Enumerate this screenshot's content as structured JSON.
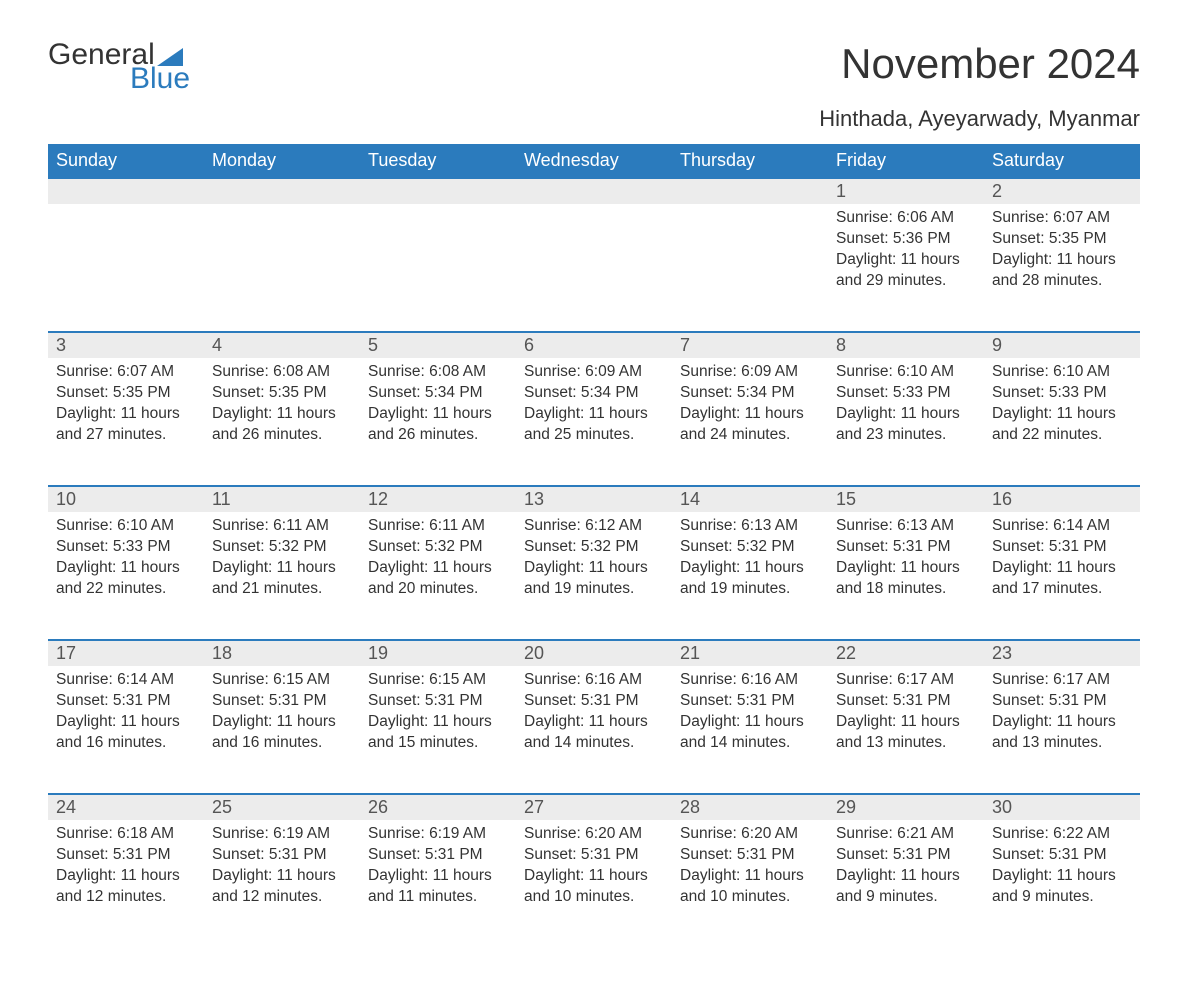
{
  "brand": {
    "word1": "General",
    "word2": "Blue",
    "accent_color": "#2b7bbd"
  },
  "title": "November 2024",
  "location": "Hinthada, Ayeyarwady, Myanmar",
  "colors": {
    "header_bg": "#2b7bbd",
    "header_text": "#ffffff",
    "row_divider": "#2b7bbd",
    "daynum_bg": "#ececec",
    "body_text": "#333333",
    "page_bg": "#ffffff"
  },
  "typography": {
    "title_fontsize": 42,
    "location_fontsize": 22,
    "header_fontsize": 18,
    "daynum_fontsize": 18,
    "cell_fontsize": 15.5
  },
  "day_headers": [
    "Sunday",
    "Monday",
    "Tuesday",
    "Wednesday",
    "Thursday",
    "Friday",
    "Saturday"
  ],
  "weeks": [
    [
      null,
      null,
      null,
      null,
      null,
      {
        "day": 1,
        "sunrise": "6:06 AM",
        "sunset": "5:36 PM",
        "daylight": "11 hours and 29 minutes."
      },
      {
        "day": 2,
        "sunrise": "6:07 AM",
        "sunset": "5:35 PM",
        "daylight": "11 hours and 28 minutes."
      }
    ],
    [
      {
        "day": 3,
        "sunrise": "6:07 AM",
        "sunset": "5:35 PM",
        "daylight": "11 hours and 27 minutes."
      },
      {
        "day": 4,
        "sunrise": "6:08 AM",
        "sunset": "5:35 PM",
        "daylight": "11 hours and 26 minutes."
      },
      {
        "day": 5,
        "sunrise": "6:08 AM",
        "sunset": "5:34 PM",
        "daylight": "11 hours and 26 minutes."
      },
      {
        "day": 6,
        "sunrise": "6:09 AM",
        "sunset": "5:34 PM",
        "daylight": "11 hours and 25 minutes."
      },
      {
        "day": 7,
        "sunrise": "6:09 AM",
        "sunset": "5:34 PM",
        "daylight": "11 hours and 24 minutes."
      },
      {
        "day": 8,
        "sunrise": "6:10 AM",
        "sunset": "5:33 PM",
        "daylight": "11 hours and 23 minutes."
      },
      {
        "day": 9,
        "sunrise": "6:10 AM",
        "sunset": "5:33 PM",
        "daylight": "11 hours and 22 minutes."
      }
    ],
    [
      {
        "day": 10,
        "sunrise": "6:10 AM",
        "sunset": "5:33 PM",
        "daylight": "11 hours and 22 minutes."
      },
      {
        "day": 11,
        "sunrise": "6:11 AM",
        "sunset": "5:32 PM",
        "daylight": "11 hours and 21 minutes."
      },
      {
        "day": 12,
        "sunrise": "6:11 AM",
        "sunset": "5:32 PM",
        "daylight": "11 hours and 20 minutes."
      },
      {
        "day": 13,
        "sunrise": "6:12 AM",
        "sunset": "5:32 PM",
        "daylight": "11 hours and 19 minutes."
      },
      {
        "day": 14,
        "sunrise": "6:13 AM",
        "sunset": "5:32 PM",
        "daylight": "11 hours and 19 minutes."
      },
      {
        "day": 15,
        "sunrise": "6:13 AM",
        "sunset": "5:31 PM",
        "daylight": "11 hours and 18 minutes."
      },
      {
        "day": 16,
        "sunrise": "6:14 AM",
        "sunset": "5:31 PM",
        "daylight": "11 hours and 17 minutes."
      }
    ],
    [
      {
        "day": 17,
        "sunrise": "6:14 AM",
        "sunset": "5:31 PM",
        "daylight": "11 hours and 16 minutes."
      },
      {
        "day": 18,
        "sunrise": "6:15 AM",
        "sunset": "5:31 PM",
        "daylight": "11 hours and 16 minutes."
      },
      {
        "day": 19,
        "sunrise": "6:15 AM",
        "sunset": "5:31 PM",
        "daylight": "11 hours and 15 minutes."
      },
      {
        "day": 20,
        "sunrise": "6:16 AM",
        "sunset": "5:31 PM",
        "daylight": "11 hours and 14 minutes."
      },
      {
        "day": 21,
        "sunrise": "6:16 AM",
        "sunset": "5:31 PM",
        "daylight": "11 hours and 14 minutes."
      },
      {
        "day": 22,
        "sunrise": "6:17 AM",
        "sunset": "5:31 PM",
        "daylight": "11 hours and 13 minutes."
      },
      {
        "day": 23,
        "sunrise": "6:17 AM",
        "sunset": "5:31 PM",
        "daylight": "11 hours and 13 minutes."
      }
    ],
    [
      {
        "day": 24,
        "sunrise": "6:18 AM",
        "sunset": "5:31 PM",
        "daylight": "11 hours and 12 minutes."
      },
      {
        "day": 25,
        "sunrise": "6:19 AM",
        "sunset": "5:31 PM",
        "daylight": "11 hours and 12 minutes."
      },
      {
        "day": 26,
        "sunrise": "6:19 AM",
        "sunset": "5:31 PM",
        "daylight": "11 hours and 11 minutes."
      },
      {
        "day": 27,
        "sunrise": "6:20 AM",
        "sunset": "5:31 PM",
        "daylight": "11 hours and 10 minutes."
      },
      {
        "day": 28,
        "sunrise": "6:20 AM",
        "sunset": "5:31 PM",
        "daylight": "11 hours and 10 minutes."
      },
      {
        "day": 29,
        "sunrise": "6:21 AM",
        "sunset": "5:31 PM",
        "daylight": "11 hours and 9 minutes."
      },
      {
        "day": 30,
        "sunrise": "6:22 AM",
        "sunset": "5:31 PM",
        "daylight": "11 hours and 9 minutes."
      }
    ]
  ],
  "labels": {
    "sunrise": "Sunrise:",
    "sunset": "Sunset:",
    "daylight": "Daylight:"
  }
}
